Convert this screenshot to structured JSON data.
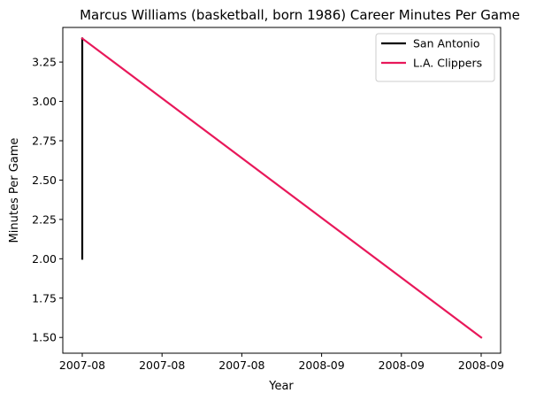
{
  "chart_data": {
    "type": "line",
    "title": "Marcus Williams (basketball, born 1986) Career Minutes Per Game",
    "xlabel": "Year",
    "ylabel": "Minutes Per Game",
    "x_ticks": [
      "2007-08",
      "2007-08",
      "2007-08",
      "2008-09",
      "2008-09",
      "2008-09"
    ],
    "x_range": [
      0,
      1
    ],
    "ylim": [
      1.4,
      3.47
    ],
    "y_ticks": [
      1.5,
      1.75,
      2.0,
      2.25,
      2.5,
      2.75,
      3.0,
      3.25
    ],
    "y_tick_labels": [
      "1.50",
      "1.75",
      "2.00",
      "2.25",
      "2.50",
      "2.75",
      "3.00",
      "3.25"
    ],
    "grid": false,
    "legend_position": "top-right",
    "series": [
      {
        "name": "San Antonio",
        "color": "#000000",
        "points": [
          {
            "x": "2007-08",
            "y": 2.0
          },
          {
            "x": "2007-08",
            "y": 3.4
          }
        ]
      },
      {
        "name": "L.A. Clippers",
        "color": "#e8185a",
        "points": [
          {
            "x": "2007-08",
            "y": 3.4
          },
          {
            "x": "2008-09",
            "y": 1.5
          }
        ]
      }
    ]
  }
}
